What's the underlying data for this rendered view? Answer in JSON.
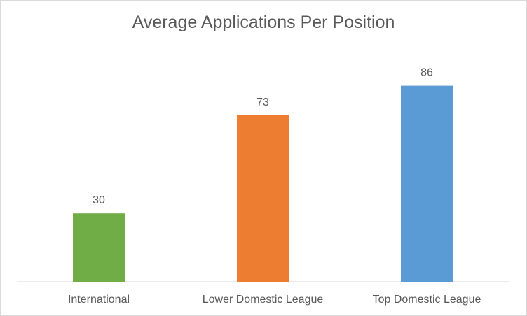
{
  "chart_data": {
    "type": "bar",
    "title": "Average Applications Per Position",
    "categories": [
      "International",
      "Lower Domestic League",
      "Top Domestic League"
    ],
    "values": [
      30,
      73,
      86
    ],
    "colors": [
      "#70ad47",
      "#ed7d31",
      "#5b9bd5"
    ],
    "ylim": [
      0,
      100
    ],
    "grid": false,
    "legend": "none"
  }
}
